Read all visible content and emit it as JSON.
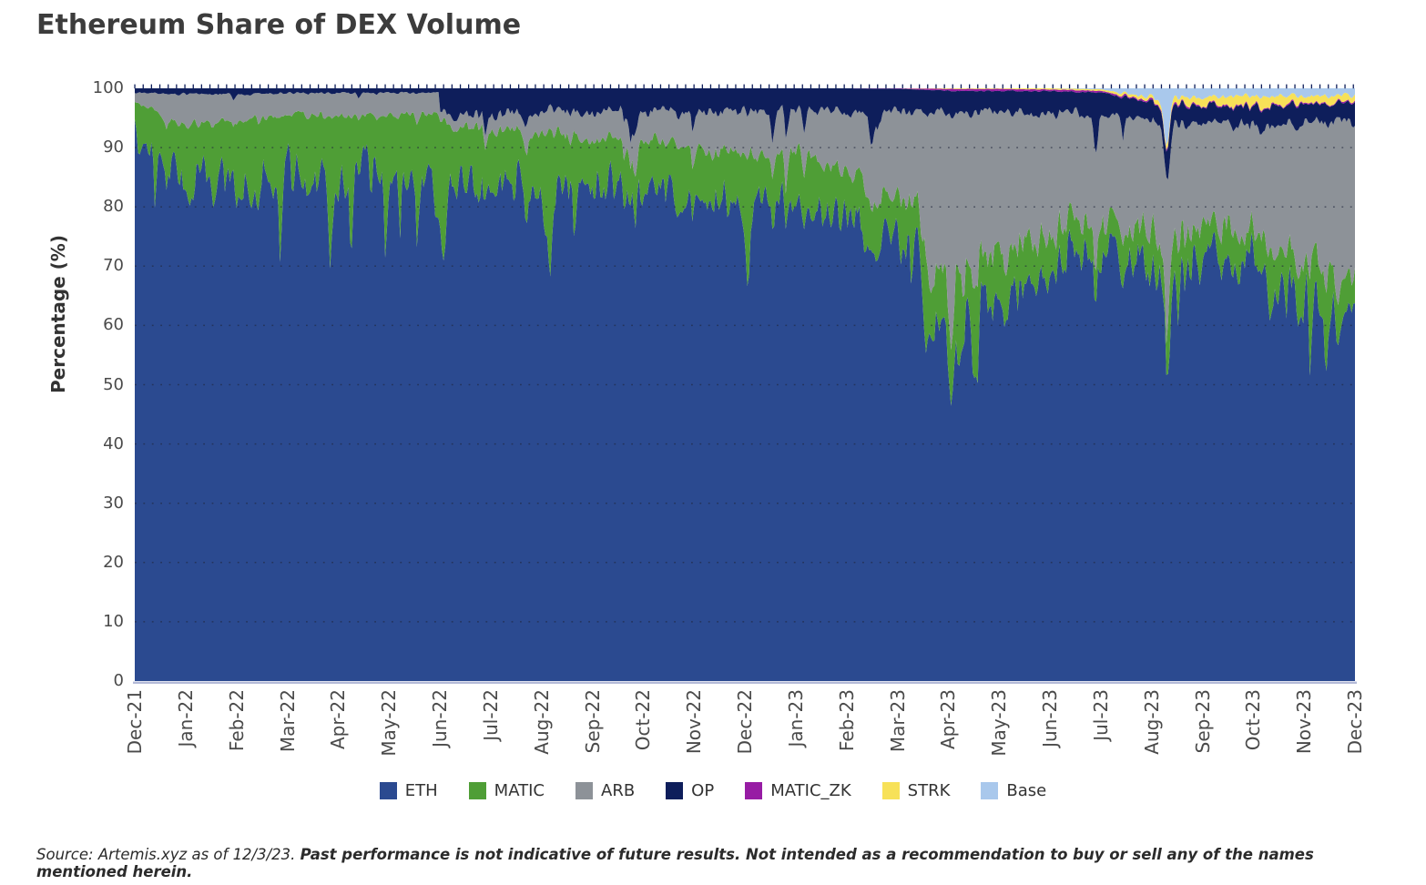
{
  "page": {
    "title": "Ethereum Share of DEX Volume",
    "footer": {
      "source_text": "Source: Artemis.xyz as of 12/3/23.",
      "disclaimer_text": "Past performance is not indicative of future results. Not intended as a recommendation to buy or sell any of the names mentioned herein."
    }
  },
  "legend": {
    "items": [
      {
        "label": "ETH",
        "color": "#2b4a90"
      },
      {
        "label": "MATIC",
        "color": "#4f9e36"
      },
      {
        "label": "ARB",
        "color": "#8d9298"
      },
      {
        "label": "OP",
        "color": "#0e1e5b"
      },
      {
        "label": "MATIC_ZK",
        "color": "#971ca4"
      },
      {
        "label": "STRK",
        "color": "#f7e158"
      },
      {
        "label": "Base",
        "color": "#a9c8ec"
      }
    ]
  },
  "chart_data": {
    "type": "area",
    "stacked": true,
    "normalized_to_100": true,
    "title": "Ethereum Share of DEX Volume",
    "xlabel": "",
    "ylabel": "Percentage (%)",
    "ylim": [
      0,
      100
    ],
    "y_ticks": [
      0,
      10,
      20,
      30,
      40,
      50,
      60,
      70,
      80,
      90,
      100
    ],
    "grid": "dotted horizontal gridlines every 10%",
    "legend_position": "bottom",
    "x_tick_labels": [
      "Dec-21",
      "Jan-22",
      "Feb-22",
      "Mar-22",
      "Apr-22",
      "May-22",
      "Jun-22",
      "Jul-22",
      "Aug-22",
      "Sep-22",
      "Oct-22",
      "Nov-22",
      "Dec-22",
      "Jan-23",
      "Feb-23",
      "Mar-23",
      "Apr-23",
      "May-23",
      "Jun-23",
      "Jul-23",
      "Aug-23",
      "Sep-23",
      "Oct-23",
      "Nov-23",
      "Dec-23"
    ],
    "series": [
      {
        "name": "ETH",
        "color": "#2b4a90",
        "monthly_share_pct": [
          91.0,
          84.5,
          84.0,
          86.0,
          85.0,
          85.5,
          84.0,
          84.8,
          84.0,
          83.5,
          83.0,
          81.5,
          81.0,
          81.5,
          77.0,
          73.95,
          60.0,
          64.95,
          70.4,
          72.35,
          69.25,
          70.1,
          70.8,
          63.1,
          63.8
        ]
      },
      {
        "name": "MATIC",
        "color": "#4f9e36",
        "monthly_share_pct": [
          6.5,
          9.5,
          10.5,
          9.5,
          10.5,
          10.0,
          9.5,
          8.5,
          8.5,
          8.0,
          8.0,
          8.5,
          8.0,
          7.5,
          8.5,
          7.0,
          7.0,
          7.0,
          6.0,
          5.5,
          6.0,
          5.5,
          5.0,
          6.5,
          5.0
        ]
      },
      {
        "name": "ARB",
        "color": "#8d9298",
        "monthly_share_pct": [
          1.8,
          5.0,
          4.5,
          3.7,
          3.7,
          3.7,
          1.5,
          2.5,
          3.5,
          4.5,
          5.0,
          6.0,
          7.0,
          7.0,
          10.5,
          15.0,
          29.0,
          24.0,
          19.5,
          18.0,
          19.0,
          18.5,
          18.0,
          24.5,
          25.5
        ]
      },
      {
        "name": "OP",
        "color": "#0e1e5b",
        "monthly_share_pct": [
          0.7,
          1.0,
          1.0,
          0.8,
          0.8,
          0.8,
          5.0,
          4.2,
          4.0,
          4.0,
          4.0,
          4.0,
          4.0,
          4.0,
          4.0,
          4.0,
          3.6,
          3.6,
          3.6,
          3.5,
          3.2,
          2.8,
          3.0,
          3.2,
          3.2
        ]
      },
      {
        "name": "MATIC_ZK",
        "color": "#971ca4",
        "monthly_share_pct": [
          0,
          0,
          0,
          0,
          0,
          0,
          0,
          0,
          0,
          0,
          0,
          0,
          0,
          0,
          0,
          0.05,
          0.3,
          0.35,
          0.3,
          0.25,
          0.25,
          0.2,
          0.2,
          0.2,
          0.2
        ]
      },
      {
        "name": "STRK",
        "color": "#f7e158",
        "monthly_share_pct": [
          0,
          0,
          0,
          0,
          0,
          0,
          0,
          0,
          0,
          0,
          0,
          0,
          0,
          0,
          0,
          0,
          0.1,
          0.1,
          0.2,
          0.25,
          0.6,
          1.4,
          1.7,
          1.3,
          1.0
        ]
      },
      {
        "name": "Base",
        "color": "#a9c8ec",
        "monthly_share_pct": [
          0,
          0,
          0,
          0,
          0,
          0,
          0,
          0,
          0,
          0,
          0,
          0,
          0,
          0,
          0,
          0,
          0,
          0,
          0,
          0.15,
          1.7,
          1.5,
          1.3,
          1.2,
          1.3
        ]
      }
    ],
    "render_hints": {
      "seed": 7,
      "daily_points": 732,
      "noise_amp": {
        "MATIC": 0.5,
        "ARB": 0.2,
        "OP": 0.32,
        "MATIC_ZK": 0.45,
        "STRK": 0.45,
        "Base": 0.45
      },
      "random_spikes": {
        "MATIC": {
          "p": 0.02,
          "min": 0.5,
          "max": 1.7
        },
        "OP": {
          "p": 0.012,
          "min": 0.4,
          "max": 1.4
        },
        "ARB": {
          "p": 0.01,
          "min": 0.2,
          "max": 0.7
        }
      },
      "transitions": [
        {
          "series": "ARB",
          "segment": 5,
          "mode": "hold"
        },
        {
          "series": "OP",
          "segment": 5,
          "mode": "hold"
        },
        {
          "series": "ARB",
          "segment": 15,
          "mode": "sharp"
        }
      ],
      "events": [
        {
          "series": "MATIC",
          "m": 6.06,
          "amount": 13,
          "days": 1.6
        },
        {
          "series": "MATIC",
          "m": 8.16,
          "amount": 17,
          "days": 1.8
        },
        {
          "series": "OP",
          "m": 9.85,
          "amount": 3.5,
          "days": 1.4
        },
        {
          "series": "MATIC",
          "m": 12.05,
          "amount": 11,
          "days": 1.5
        },
        {
          "series": "OP",
          "m": 14.5,
          "amount": 5,
          "days": 1.4
        },
        {
          "series": "MATIC",
          "m": 15.55,
          "amount": 10,
          "days": 1.6
        },
        {
          "series": "MATIC",
          "m": 16.2,
          "amount": 9,
          "days": 1.8
        },
        {
          "series": "MATIC",
          "m": 16.55,
          "amount": 11,
          "days": 1.8
        },
        {
          "series": "OP",
          "m": 18.9,
          "amount": 6,
          "days": 1.4
        },
        {
          "series": "Base",
          "m": 20.3,
          "amount": 8.5,
          "days": 1.6
        },
        {
          "series": "OP",
          "m": 20.34,
          "amount": 3,
          "days": 1.6
        },
        {
          "series": "MATIC",
          "m": 23.45,
          "amount": 9,
          "days": 1.8
        }
      ]
    }
  },
  "style": {
    "gridline_color": "#20263b",
    "axis_line_color": "#b4bad8",
    "top_tick_color": "#0e1e5b"
  }
}
